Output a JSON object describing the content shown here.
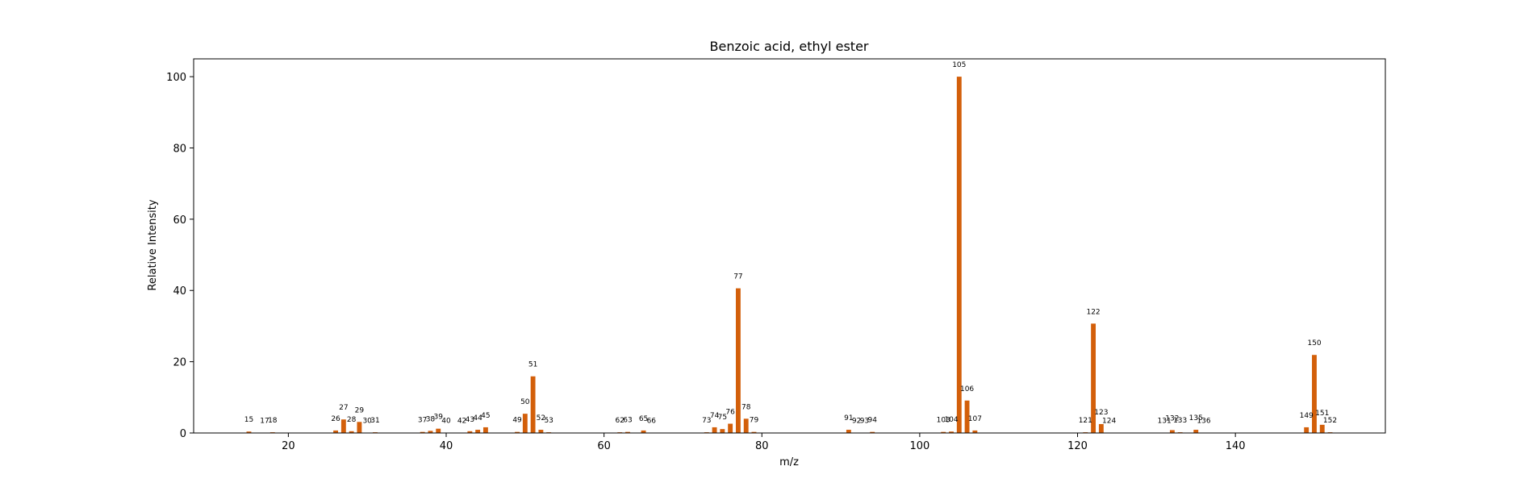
{
  "chart_data": {
    "type": "bar",
    "title": "Benzoic acid, ethyl ester",
    "xlabel": "m/z",
    "ylabel": "Relative Intensity",
    "xlim": [
      8,
      159
    ],
    "ylim": [
      0,
      105
    ],
    "xticks": [
      20,
      40,
      60,
      80,
      100,
      120,
      140
    ],
    "yticks": [
      0,
      20,
      40,
      60,
      80,
      100
    ],
    "grid": false,
    "bar_color": "#d35f0a",
    "bars": [
      {
        "x": 15,
        "y": 0.4
      },
      {
        "x": 17,
        "y": 0.1
      },
      {
        "x": 18,
        "y": 0.2
      },
      {
        "x": 26,
        "y": 0.7
      },
      {
        "x": 27,
        "y": 3.8
      },
      {
        "x": 28,
        "y": 0.5
      },
      {
        "x": 29,
        "y": 3.1
      },
      {
        "x": 30,
        "y": 0.1
      },
      {
        "x": 31,
        "y": 0.2
      },
      {
        "x": 37,
        "y": 0.3
      },
      {
        "x": 38,
        "y": 0.6
      },
      {
        "x": 39,
        "y": 1.2
      },
      {
        "x": 40,
        "y": 0.1
      },
      {
        "x": 42,
        "y": 0.1
      },
      {
        "x": 43,
        "y": 0.5
      },
      {
        "x": 44,
        "y": 0.9
      },
      {
        "x": 45,
        "y": 1.6
      },
      {
        "x": 49,
        "y": 0.3
      },
      {
        "x": 50,
        "y": 5.4
      },
      {
        "x": 51,
        "y": 15.9
      },
      {
        "x": 52,
        "y": 0.9
      },
      {
        "x": 53,
        "y": 0.2
      },
      {
        "x": 62,
        "y": 0.2
      },
      {
        "x": 63,
        "y": 0.3
      },
      {
        "x": 65,
        "y": 0.7
      },
      {
        "x": 66,
        "y": 0.1
      },
      {
        "x": 73,
        "y": 0.2
      },
      {
        "x": 74,
        "y": 1.6
      },
      {
        "x": 75,
        "y": 1.1
      },
      {
        "x": 76,
        "y": 2.6
      },
      {
        "x": 77,
        "y": 40.6
      },
      {
        "x": 78,
        "y": 4.0
      },
      {
        "x": 79,
        "y": 0.3
      },
      {
        "x": 91,
        "y": 0.9
      },
      {
        "x": 92,
        "y": 0.1
      },
      {
        "x": 93,
        "y": 0.1
      },
      {
        "x": 94,
        "y": 0.3
      },
      {
        "x": 103,
        "y": 0.3
      },
      {
        "x": 104,
        "y": 0.4
      },
      {
        "x": 105,
        "y": 100
      },
      {
        "x": 106,
        "y": 9.1
      },
      {
        "x": 107,
        "y": 0.7
      },
      {
        "x": 121,
        "y": 0.2
      },
      {
        "x": 122,
        "y": 30.7
      },
      {
        "x": 123,
        "y": 2.5
      },
      {
        "x": 124,
        "y": 0.1
      },
      {
        "x": 131,
        "y": 0.1
      },
      {
        "x": 132,
        "y": 0.8
      },
      {
        "x": 133,
        "y": 0.2
      },
      {
        "x": 135,
        "y": 0.9
      },
      {
        "x": 136,
        "y": 0.1
      },
      {
        "x": 149,
        "y": 1.6
      },
      {
        "x": 150,
        "y": 21.9
      },
      {
        "x": 151,
        "y": 2.3
      },
      {
        "x": 152,
        "y": 0.2
      }
    ]
  }
}
